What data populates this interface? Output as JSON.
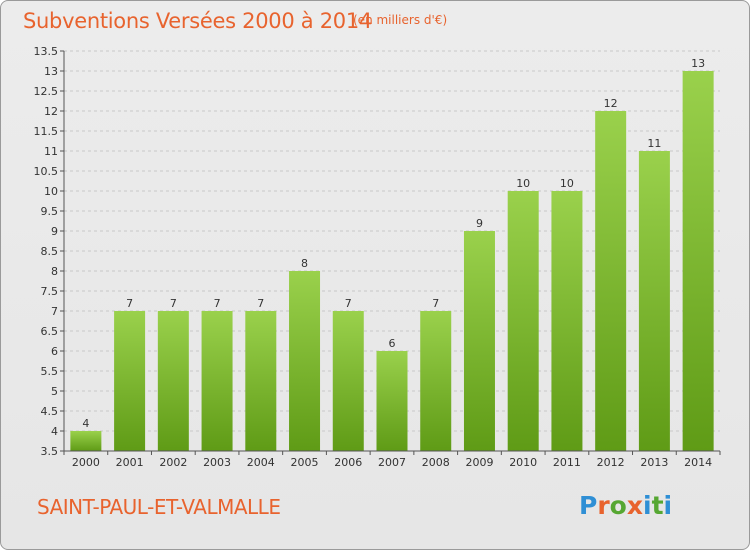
{
  "header": {
    "title": "Subventions Versées 2000 à 2014",
    "subtitle": "(en milliers d'€)"
  },
  "footer": {
    "commune": "SAINT-PAUL-ET-VALMALLE",
    "logo_text": "Proxiti",
    "logo_colors": [
      "#2f8fd5",
      "#e8632e",
      "#56a732",
      "#e8632e",
      "#2f8fd5",
      "#56a732",
      "#2f8fd5"
    ]
  },
  "colors": {
    "accent": "#e8632e",
    "bar_light": "#9ad14c",
    "bar_dark": "#5f9b16",
    "grid": "#c8c8c8"
  },
  "chart_data": {
    "type": "bar",
    "title": "Subventions Versées 2000 à 2014",
    "subtitle": "(en milliers d'€)",
    "xlabel": "",
    "ylabel": "",
    "categories": [
      "2000",
      "2001",
      "2002",
      "2003",
      "2004",
      "2005",
      "2006",
      "2007",
      "2008",
      "2009",
      "2010",
      "2011",
      "2012",
      "2013",
      "2014"
    ],
    "values": [
      4,
      7,
      7,
      7,
      7,
      8,
      7,
      6,
      7,
      9,
      10,
      10,
      12,
      11,
      13
    ],
    "data_labels": [
      "4",
      "7",
      "7",
      "7",
      "7",
      "8",
      "7",
      "6",
      "7",
      "9",
      "10",
      "10",
      "12",
      "11",
      "13"
    ],
    "ylim": [
      3.5,
      13.5
    ],
    "yticks": [
      "3.5",
      "4",
      "4.5",
      "5",
      "5.5",
      "6",
      "6.5",
      "7",
      "7.5",
      "8",
      "8.5",
      "9",
      "9.5",
      "10",
      "10.5",
      "11",
      "11.5",
      "12",
      "12.5",
      "13",
      "13.5"
    ],
    "grid": true,
    "grid_style": "dashed-horizontal",
    "legend": "none"
  }
}
